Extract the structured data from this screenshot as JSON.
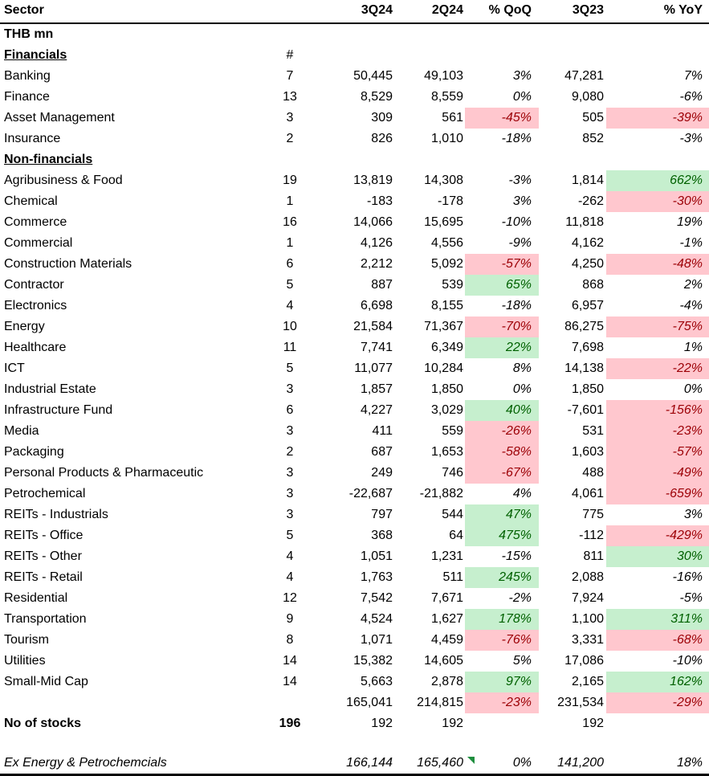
{
  "title": "Sector earnings table (THB mn)",
  "unit_label": "THB mn",
  "header": {
    "sector": "Sector",
    "count": "#",
    "q3_24": "3Q24",
    "q2_24": "2Q24",
    "qoq": "% QoQ",
    "q3_23": "3Q23",
    "yoy": "% YoY"
  },
  "colors": {
    "neg_bg": "#FFC7CE",
    "neg_text": "#9C0006",
    "pos_bg": "#C6EFCE",
    "pos_text": "#006100",
    "flag_green": "#1E8E3E",
    "rule": "#000000"
  },
  "rows": [
    {
      "type": "subheader",
      "label": "THB mn",
      "count": "",
      "q3_24": "",
      "q2_24": "",
      "qoq": "",
      "qoq_hl": "none",
      "q3_23": "",
      "yoy": "",
      "yoy_hl": "none"
    },
    {
      "type": "group",
      "label": "Financials",
      "count": "#",
      "q3_24": "",
      "q2_24": "",
      "qoq": "",
      "qoq_hl": "none",
      "q3_23": "",
      "yoy": "",
      "yoy_hl": "none"
    },
    {
      "type": "data",
      "label": "Banking",
      "count": "7",
      "q3_24": "50,445",
      "q2_24": "49,103",
      "qoq": "3%",
      "qoq_hl": "none",
      "q3_23": "47,281",
      "yoy": "7%",
      "yoy_hl": "none"
    },
    {
      "type": "data",
      "label": "Finance",
      "count": "13",
      "q3_24": "8,529",
      "q2_24": "8,559",
      "qoq": "0%",
      "qoq_hl": "none",
      "q3_23": "9,080",
      "yoy": "-6%",
      "yoy_hl": "none"
    },
    {
      "type": "data",
      "label": "Asset Management",
      "count": "3",
      "q3_24": "309",
      "q2_24": "561",
      "qoq": "-45%",
      "qoq_hl": "neg",
      "q3_23": "505",
      "yoy": "-39%",
      "yoy_hl": "neg"
    },
    {
      "type": "data",
      "label": "Insurance",
      "count": "2",
      "q3_24": "826",
      "q2_24": "1,010",
      "qoq": "-18%",
      "qoq_hl": "none",
      "q3_23": "852",
      "yoy": "-3%",
      "yoy_hl": "none"
    },
    {
      "type": "group",
      "label": "Non-financials",
      "count": "",
      "q3_24": "",
      "q2_24": "",
      "qoq": "",
      "qoq_hl": "none",
      "q3_23": "",
      "yoy": "",
      "yoy_hl": "none"
    },
    {
      "type": "data",
      "label": "Agribusiness & Food",
      "count": "19",
      "q3_24": "13,819",
      "q2_24": "14,308",
      "qoq": "-3%",
      "qoq_hl": "none",
      "q3_23": "1,814",
      "yoy": "662%",
      "yoy_hl": "pos"
    },
    {
      "type": "data",
      "label": "Chemical",
      "count": "1",
      "q3_24": "-183",
      "q2_24": "-178",
      "qoq": "3%",
      "qoq_hl": "none",
      "q3_23": "-262",
      "yoy": "-30%",
      "yoy_hl": "neg"
    },
    {
      "type": "data",
      "label": "Commerce",
      "count": "16",
      "q3_24": "14,066",
      "q2_24": "15,695",
      "qoq": "-10%",
      "qoq_hl": "none",
      "q3_23": "11,818",
      "yoy": "19%",
      "yoy_hl": "none"
    },
    {
      "type": "data",
      "label": "Commercial",
      "count": "1",
      "q3_24": "4,126",
      "q2_24": "4,556",
      "qoq": "-9%",
      "qoq_hl": "none",
      "q3_23": "4,162",
      "yoy": "-1%",
      "yoy_hl": "none"
    },
    {
      "type": "data",
      "label": "Construction Materials",
      "count": "6",
      "q3_24": "2,212",
      "q2_24": "5,092",
      "qoq": "-57%",
      "qoq_hl": "neg",
      "q3_23": "4,250",
      "yoy": "-48%",
      "yoy_hl": "neg"
    },
    {
      "type": "data",
      "label": "Contractor",
      "count": "5",
      "q3_24": "887",
      "q2_24": "539",
      "qoq": "65%",
      "qoq_hl": "pos",
      "q3_23": "868",
      "yoy": "2%",
      "yoy_hl": "none"
    },
    {
      "type": "data",
      "label": "Electronics",
      "count": "4",
      "q3_24": "6,698",
      "q2_24": "8,155",
      "qoq": "-18%",
      "qoq_hl": "none",
      "q3_23": "6,957",
      "yoy": "-4%",
      "yoy_hl": "none"
    },
    {
      "type": "data",
      "label": "Energy",
      "count": "10",
      "q3_24": "21,584",
      "q2_24": "71,367",
      "qoq": "-70%",
      "qoq_hl": "neg",
      "q3_23": "86,275",
      "yoy": "-75%",
      "yoy_hl": "neg"
    },
    {
      "type": "data",
      "label": "Healthcare",
      "count": "11",
      "q3_24": "7,741",
      "q2_24": "6,349",
      "qoq": "22%",
      "qoq_hl": "pos",
      "q3_23": "7,698",
      "yoy": "1%",
      "yoy_hl": "none"
    },
    {
      "type": "data",
      "label": "ICT",
      "count": "5",
      "q3_24": "11,077",
      "q2_24": "10,284",
      "qoq": "8%",
      "qoq_hl": "none",
      "q3_23": "14,138",
      "yoy": "-22%",
      "yoy_hl": "neg"
    },
    {
      "type": "data",
      "label": "Industrial Estate",
      "count": "3",
      "q3_24": "1,857",
      "q2_24": "1,850",
      "qoq": "0%",
      "qoq_hl": "none",
      "q3_23": "1,850",
      "yoy": "0%",
      "yoy_hl": "none"
    },
    {
      "type": "data",
      "label": "Infrastructure Fund",
      "count": "6",
      "q3_24": "4,227",
      "q2_24": "3,029",
      "qoq": "40%",
      "qoq_hl": "pos",
      "q3_23": "-7,601",
      "yoy": "-156%",
      "yoy_hl": "neg"
    },
    {
      "type": "data",
      "label": "Media",
      "count": "3",
      "q3_24": "411",
      "q2_24": "559",
      "qoq": "-26%",
      "qoq_hl": "neg",
      "q3_23": "531",
      "yoy": "-23%",
      "yoy_hl": "neg"
    },
    {
      "type": "data",
      "label": "Packaging",
      "count": "2",
      "q3_24": "687",
      "q2_24": "1,653",
      "qoq": "-58%",
      "qoq_hl": "neg",
      "q3_23": "1,603",
      "yoy": "-57%",
      "yoy_hl": "neg"
    },
    {
      "type": "data",
      "label": "Personal Products & Pharmaceutic",
      "count": "3",
      "q3_24": "249",
      "q2_24": "746",
      "qoq": "-67%",
      "qoq_hl": "neg",
      "q3_23": "488",
      "yoy": "-49%",
      "yoy_hl": "neg"
    },
    {
      "type": "data",
      "label": "Petrochemical",
      "count": "3",
      "q3_24": "-22,687",
      "q2_24": "-21,882",
      "qoq": "4%",
      "qoq_hl": "none",
      "q3_23": "4,061",
      "yoy": "-659%",
      "yoy_hl": "neg"
    },
    {
      "type": "data",
      "label": "REITs - Industrials",
      "count": "3",
      "q3_24": "797",
      "q2_24": "544",
      "qoq": "47%",
      "qoq_hl": "pos",
      "q3_23": "775",
      "yoy": "3%",
      "yoy_hl": "none"
    },
    {
      "type": "data",
      "label": "REITs - Office",
      "count": "5",
      "q3_24": "368",
      "q2_24": "64",
      "qoq": "475%",
      "qoq_hl": "pos",
      "q3_23": "-112",
      "yoy": "-429%",
      "yoy_hl": "neg"
    },
    {
      "type": "data",
      "label": "REITs - Other",
      "count": "4",
      "q3_24": "1,051",
      "q2_24": "1,231",
      "qoq": "-15%",
      "qoq_hl": "none",
      "q3_23": "811",
      "yoy": "30%",
      "yoy_hl": "pos"
    },
    {
      "type": "data",
      "label": "REITs - Retail",
      "count": "4",
      "q3_24": "1,763",
      "q2_24": "511",
      "qoq": "245%",
      "qoq_hl": "pos",
      "q3_23": "2,088",
      "yoy": "-16%",
      "yoy_hl": "none"
    },
    {
      "type": "data",
      "label": "Residential",
      "count": "12",
      "q3_24": "7,542",
      "q2_24": "7,671",
      "qoq": "-2%",
      "qoq_hl": "none",
      "q3_23": "7,924",
      "yoy": "-5%",
      "yoy_hl": "none"
    },
    {
      "type": "data",
      "label": "Transportation",
      "count": "9",
      "q3_24": "4,524",
      "q2_24": "1,627",
      "qoq": "178%",
      "qoq_hl": "pos",
      "q3_23": "1,100",
      "yoy": "311%",
      "yoy_hl": "pos"
    },
    {
      "type": "data",
      "label": "Tourism",
      "count": "8",
      "q3_24": "1,071",
      "q2_24": "4,459",
      "qoq": "-76%",
      "qoq_hl": "neg",
      "q3_23": "3,331",
      "yoy": "-68%",
      "yoy_hl": "neg"
    },
    {
      "type": "data",
      "label": "Utilities",
      "count": "14",
      "q3_24": "15,382",
      "q2_24": "14,605",
      "qoq": "5%",
      "qoq_hl": "none",
      "q3_23": "17,086",
      "yoy": "-10%",
      "yoy_hl": "none"
    },
    {
      "type": "data",
      "label": "Small-Mid Cap",
      "count": "14",
      "q3_24": "5,663",
      "q2_24": "2,878",
      "qoq": "97%",
      "qoq_hl": "pos",
      "q3_23": "2,165",
      "yoy": "162%",
      "yoy_hl": "pos"
    },
    {
      "type": "data",
      "label": "",
      "count": "",
      "q3_24": "165,041",
      "q2_24": "214,815",
      "qoq": "-23%",
      "qoq_hl": "neg",
      "q3_23": "231,534",
      "yoy": "-29%",
      "yoy_hl": "neg"
    },
    {
      "type": "stocks",
      "label": "No of stocks",
      "count": "196",
      "q3_24": "192",
      "q2_24": "192",
      "qoq": "",
      "qoq_hl": "none",
      "q3_23": "192",
      "yoy": "",
      "yoy_hl": "none"
    },
    {
      "type": "spacer",
      "label": "",
      "count": "",
      "q3_24": "",
      "q2_24": "",
      "qoq": "",
      "qoq_hl": "none",
      "q3_23": "",
      "yoy": "",
      "yoy_hl": "none"
    },
    {
      "type": "exrow",
      "label": "Ex Energy & Petrochemcials",
      "count": "",
      "q3_24": "166,144",
      "q2_24": "165,460",
      "qoq": "0%",
      "qoq_hl": "none",
      "q3_23": "141,200",
      "yoy": "18%",
      "yoy_hl": "none",
      "flag": true
    }
  ]
}
